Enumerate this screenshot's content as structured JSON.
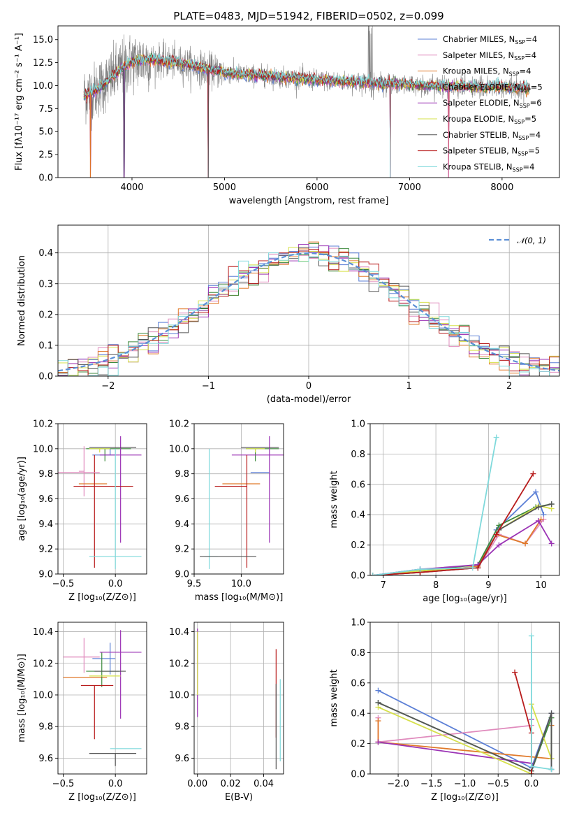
{
  "figure": {
    "title": "PLATE=0483, MJD=51942, FIBERID=0502, z=0.099"
  },
  "model_colors": [
    "#5b7fd6",
    "#e08bbd",
    "#e07a2b",
    "#3d8a3d",
    "#9b33b5",
    "#d6e04a",
    "#555555",
    "#b81c1c",
    "#7fd9db"
  ],
  "models": [
    {
      "label": "Chabrier MILES",
      "nssp": "4"
    },
    {
      "label": "Salpeter MILES",
      "nssp": "4"
    },
    {
      "label": "Kroupa MILES",
      "nssp": "4"
    },
    {
      "label": "Chabrier ELODIE",
      "nssp": "5"
    },
    {
      "label": "Salpeter ELODIE",
      "nssp": "6"
    },
    {
      "label": "Kroupa ELODIE",
      "nssp": "5"
    },
    {
      "label": "Chabrier STELIB",
      "nssp": "4"
    },
    {
      "label": "Salpeter STELIB",
      "nssp": "5"
    },
    {
      "label": "Kroupa STELIB",
      "nssp": "4"
    }
  ],
  "chart_data": [
    {
      "id": "spectrum",
      "type": "line",
      "xlabel": "wavelength [Angstrom, rest frame]",
      "ylabel": "Flux [fλ10⁻¹⁷ erg cm⁻² s⁻¹ A⁻¹]",
      "xlim": [
        3200,
        8620
      ],
      "ylim": [
        0,
        16.5
      ],
      "xticks": [
        4000,
        5000,
        6000,
        7000,
        8000
      ],
      "yticks": [
        0.0,
        2.5,
        5.0,
        7.5,
        10.0,
        12.5,
        15.0
      ],
      "legend_position": "top-right",
      "data_color": "#808080",
      "continuum": {
        "x": [
          3480,
          3600,
          3700,
          3800,
          3900,
          4000,
          4200,
          4400,
          4600,
          4800,
          5000,
          5200,
          5400,
          5600,
          5800,
          6000,
          6200,
          6400,
          6600,
          6800,
          7000,
          7200,
          7400,
          7600,
          7800,
          8000,
          8200,
          8300
        ],
        "y": [
          9.0,
          9.4,
          10.2,
          11.0,
          12.0,
          12.6,
          12.8,
          12.6,
          12.3,
          11.8,
          11.4,
          11.2,
          11.1,
          10.9,
          10.8,
          10.6,
          10.5,
          10.4,
          10.3,
          10.2,
          10.1,
          10.0,
          9.9,
          9.9,
          9.8,
          9.8,
          9.7,
          9.7
        ]
      },
      "dips": [
        {
          "x": 3550,
          "y": 0.0
        },
        {
          "x": 3915,
          "y": 0.0
        },
        {
          "x": 4825,
          "y": 0.0
        },
        {
          "x": 6790,
          "y": 0.0
        },
        {
          "x": 7420,
          "y": 0.0
        }
      ]
    },
    {
      "id": "residuals",
      "type": "histogram",
      "xlabel": "(data-model)/error",
      "ylabel": "Normed distribution",
      "xlim": [
        -2.5,
        2.5
      ],
      "ylim": [
        0,
        0.49
      ],
      "xticks": [
        -2,
        -1,
        0,
        1,
        2
      ],
      "yticks": [
        0.0,
        0.1,
        0.2,
        0.3,
        0.4
      ],
      "legend": [
        "𝒩(0, 1)"
      ],
      "legend_position": "top-right",
      "bin_width": 0.1,
      "bins_start": -2.5
    },
    {
      "id": "age_vs_Z",
      "type": "errorbar",
      "xlabel": "Z [log₁₀(Z/Z⊙)]",
      "ylabel": "age  [log₁₀(age/yr)]",
      "xlim": [
        -0.55,
        0.3
      ],
      "ylim": [
        9.0,
        10.2
      ],
      "xticks": [
        -0.5,
        0.0
      ],
      "xticklabels": [
        "−0.5",
        "0.0"
      ],
      "yticks": [
        9.0,
        9.2,
        9.4,
        9.6,
        9.8,
        10.0,
        10.2
      ],
      "points": [
        {
          "m": 0,
          "x": -0.05,
          "y": 9.95,
          "xerr": [
            0.17,
            0.05
          ],
          "yerr": [
            0.0,
            0.05
          ]
        },
        {
          "m": 1,
          "x": -0.3,
          "y": 9.82,
          "xerr": [
            0.05,
            0.0
          ],
          "yerr": [
            0.2,
            0.2
          ]
        },
        {
          "m": 2,
          "x": -0.3,
          "y": 9.72,
          "xerr": [
            0.05,
            0.22
          ],
          "yerr": [
            0.0,
            0.0
          ]
        },
        {
          "m": 3,
          "x": -0.1,
          "y": 10.0,
          "xerr": [
            0.18,
            0.25
          ],
          "yerr": [
            0.1,
            0.0
          ]
        },
        {
          "m": 4,
          "x": 0.05,
          "y": 9.95,
          "xerr": [
            0.2,
            0.2
          ],
          "yerr": [
            0.7,
            0.15
          ]
        },
        {
          "m": 5,
          "x": -0.15,
          "y": 10.0,
          "xerr": [
            0.1,
            0.1
          ],
          "yerr": [
            0.03,
            0.0
          ]
        },
        {
          "m": 6,
          "x": -0.1,
          "y": 10.01,
          "xerr": [
            0.15,
            0.3
          ],
          "yerr": [
            0.0,
            0.0
          ]
        },
        {
          "m": 7,
          "x": -0.2,
          "y": 9.7,
          "xerr": [
            0.2,
            0.37
          ],
          "yerr": [
            0.65,
            0.25
          ]
        },
        {
          "m": 8,
          "x": 0.0,
          "y": 9.14,
          "xerr": [
            0.25,
            0.25
          ],
          "yerr": [
            0.1,
            0.86
          ]
        },
        {
          "m": 1,
          "x": -0.45,
          "y": 9.81,
          "xerr": [
            0.1,
            0.3
          ],
          "yerr": [
            0.0,
            0.0
          ]
        }
      ]
    },
    {
      "id": "age_vs_mass",
      "type": "errorbar",
      "xlabel": "mass [log₁₀(M/M⊙)]",
      "ylabel": "",
      "xlim": [
        9.5,
        10.45
      ],
      "ylim": [
        9.0,
        10.2
      ],
      "xticks": [
        9.5,
        10.0
      ],
      "xticklabels": [
        "9.5",
        "10.0"
      ],
      "yticks": [
        9.0,
        9.2,
        9.4,
        9.6,
        9.8,
        10.0,
        10.2
      ],
      "points": [
        {
          "m": 0,
          "x": 10.2,
          "y": 9.81,
          "xerr": [
            0.1,
            0.1
          ],
          "yerr": [
            0.0,
            0.0
          ]
        },
        {
          "m": 2,
          "x": 10.0,
          "y": 9.72,
          "xerr": [
            0.2,
            0.2
          ],
          "yerr": [
            0.0,
            0.0
          ]
        },
        {
          "m": 3,
          "x": 10.15,
          "y": 10.0,
          "xerr": [
            0.1,
            0.25
          ],
          "yerr": [
            0.1,
            0.0
          ]
        },
        {
          "m": 4,
          "x": 10.3,
          "y": 9.95,
          "xerr": [
            0.4,
            0.15
          ],
          "yerr": [
            0.7,
            0.15
          ]
        },
        {
          "m": 5,
          "x": 10.15,
          "y": 10.0,
          "xerr": [
            0.1,
            0.1
          ],
          "yerr": [
            0.03,
            0.0
          ]
        },
        {
          "m": 6,
          "x": 10.1,
          "y": 10.01,
          "xerr": [
            0.1,
            0.3
          ],
          "yerr": [
            0.0,
            0.0
          ]
        },
        {
          "m": 7,
          "x": 10.06,
          "y": 9.7,
          "xerr": [
            0.34,
            0.0
          ],
          "yerr": [
            0.65,
            0.25
          ]
        },
        {
          "m": 8,
          "x": 9.66,
          "y": 9.14,
          "xerr": [
            0.05,
            0.09
          ],
          "yerr": [
            0.1,
            0.86
          ]
        },
        {
          "m": 6,
          "x": 9.66,
          "y": 9.14,
          "xerr": [
            0.1,
            0.5
          ],
          "yerr": [
            0.0,
            0.0
          ]
        }
      ]
    },
    {
      "id": "massweight_vs_age",
      "type": "line",
      "xlabel": "age  [log₁₀(age/yr)]",
      "ylabel": "mass weight",
      "xlim": [
        6.75,
        10.35
      ],
      "ylim": [
        0,
        1.0
      ],
      "xticks": [
        7,
        8,
        9,
        10
      ],
      "yticks": [
        0.0,
        0.2,
        0.4,
        0.6,
        0.8,
        1.0
      ],
      "series": [
        {
          "m": 0,
          "x": [
            6.8,
            7.7,
            8.8,
            9.15,
            9.9,
            10.05
          ],
          "y": [
            0.0,
            0.04,
            0.05,
            0.3,
            0.55,
            0.4
          ]
        },
        {
          "m": 1,
          "x": [
            6.8,
            7.7,
            8.8,
            9.2,
            9.7,
            10.05
          ],
          "y": [
            0.0,
            0.02,
            0.05,
            0.27,
            0.21,
            0.37
          ]
        },
        {
          "m": 2,
          "x": [
            6.8,
            7.7,
            8.8,
            9.15,
            9.7,
            10.0
          ],
          "y": [
            0.0,
            0.02,
            0.06,
            0.27,
            0.21,
            0.37
          ]
        },
        {
          "m": 3,
          "x": [
            6.8,
            7.7,
            8.8,
            9.2,
            9.9,
            10.2
          ],
          "y": [
            0.0,
            0.03,
            0.07,
            0.33,
            0.45,
            0.47
          ]
        },
        {
          "m": 4,
          "x": [
            6.8,
            7.7,
            8.8,
            9.2,
            9.95,
            10.2
          ],
          "y": [
            0.0,
            0.04,
            0.07,
            0.2,
            0.36,
            0.21
          ]
        },
        {
          "m": 5,
          "x": [
            6.8,
            7.7,
            8.8,
            9.2,
            9.95,
            10.2
          ],
          "y": [
            0.0,
            0.03,
            0.05,
            0.3,
            0.46,
            0.44
          ]
        },
        {
          "m": 6,
          "x": [
            6.8,
            7.7,
            8.8,
            9.2,
            9.95,
            10.2
          ],
          "y": [
            0.0,
            0.02,
            0.05,
            0.3,
            0.45,
            0.47
          ]
        },
        {
          "m": 7,
          "x": [
            6.8,
            7.7,
            8.8,
            9.15,
            9.85
          ],
          "y": [
            0.0,
            0.02,
            0.05,
            0.27,
            0.67
          ]
        },
        {
          "m": 8,
          "x": [
            6.8,
            7.7,
            8.7,
            9.15
          ],
          "y": [
            0.0,
            0.04,
            0.05,
            0.91
          ]
        }
      ]
    },
    {
      "id": "mass_vs_Z",
      "type": "errorbar",
      "xlabel": "Z [log₁₀(Z/Z⊙)]",
      "ylabel": "mass [log₁₀(M/M⊙)]",
      "xlim": [
        -0.55,
        0.3
      ],
      "ylim": [
        9.5,
        10.46
      ],
      "xticks": [
        -0.5,
        0.0
      ],
      "xticklabels": [
        "−0.5",
        "0.0"
      ],
      "yticks": [
        9.6,
        9.8,
        10.0,
        10.2,
        10.4
      ],
      "points": [
        {
          "m": 0,
          "x": -0.05,
          "y": 10.23,
          "xerr": [
            0.17,
            0.05
          ],
          "yerr": [
            0.1,
            0.1
          ]
        },
        {
          "m": 1,
          "x": -0.3,
          "y": 10.24,
          "xerr": [
            0.2,
            0.15
          ],
          "yerr": [
            0.1,
            0.12
          ]
        },
        {
          "m": 2,
          "x": -0.3,
          "y": 10.11,
          "xerr": [
            0.2,
            0.22
          ],
          "yerr": [
            0.0,
            0.0
          ]
        },
        {
          "m": 3,
          "x": -0.13,
          "y": 10.15,
          "xerr": [
            0.15,
            0.17
          ],
          "yerr": [
            0.1,
            0.12
          ]
        },
        {
          "m": 4,
          "x": 0.05,
          "y": 10.27,
          "xerr": [
            0.2,
            0.2
          ],
          "yerr": [
            0.42,
            0.14
          ]
        },
        {
          "m": 5,
          "x": -0.15,
          "y": 10.12,
          "xerr": [
            0.1,
            0.2
          ],
          "yerr": [
            0.0,
            0.0
          ]
        },
        {
          "m": 6,
          "x": -0.1,
          "y": 10.15,
          "xerr": [
            0.1,
            0.2
          ],
          "yerr": [
            0.0,
            0.0
          ]
        },
        {
          "m": 7,
          "x": -0.2,
          "y": 10.06,
          "xerr": [
            0.13,
            0.18
          ],
          "yerr": [
            0.34,
            0.0
          ]
        },
        {
          "m": 8,
          "x": 0.0,
          "y": 9.66,
          "xerr": [
            0.05,
            0.25
          ],
          "yerr": [
            0.0,
            0.0
          ]
        },
        {
          "m": 6,
          "x": 0.0,
          "y": 9.63,
          "xerr": [
            0.25,
            0.2
          ],
          "yerr": [
            0.08,
            0.0
          ]
        }
      ]
    },
    {
      "id": "mass_vs_EBV",
      "type": "errorbar",
      "xlabel": "E(B-V)",
      "ylabel": "",
      "xlim": [
        -0.002,
        0.052
      ],
      "ylim": [
        9.5,
        10.46
      ],
      "xticks": [
        0.0,
        0.02,
        0.04
      ],
      "xticklabels": [
        "0.00",
        "0.02",
        "0.04"
      ],
      "yticks": [
        9.6,
        9.8,
        10.0,
        10.2,
        10.4
      ],
      "points": [
        {
          "m": 4,
          "x": 0.0,
          "y": 10.2,
          "xerr": [
            0,
            0
          ],
          "yerr": [
            0.34,
            0.22
          ]
        },
        {
          "m": 5,
          "x": 0.0,
          "y": 10.2,
          "xerr": [
            0,
            0
          ],
          "yerr": [
            0.2,
            0.2
          ]
        },
        {
          "m": 7,
          "x": 0.0475,
          "y": 10.0,
          "xerr": [
            0,
            0
          ],
          "yerr": [
            0.27,
            0.29
          ]
        },
        {
          "m": 6,
          "x": 0.0475,
          "y": 9.8,
          "xerr": [
            0,
            0
          ],
          "yerr": [
            0.27,
            0.27
          ]
        },
        {
          "m": 8,
          "x": 0.05,
          "y": 9.84,
          "xerr": [
            0,
            0
          ],
          "yerr": [
            0.26,
            0.26
          ]
        }
      ]
    },
    {
      "id": "massweight_vs_Z",
      "type": "line",
      "xlabel": "Z [log₁₀(Z/Z⊙)]",
      "ylabel": "mass weight",
      "xlim": [
        -2.42,
        0.42
      ],
      "ylim": [
        0,
        1.0
      ],
      "xticks": [
        -2.0,
        -1.5,
        -1.0,
        -0.5,
        0.0
      ],
      "xticklabels": [
        "−2.0",
        "−1.5",
        "−1.0",
        "−0.5",
        "0.0"
      ],
      "yticks": [
        0.0,
        0.2,
        0.4,
        0.6,
        0.8,
        1.0
      ],
      "series": [
        {
          "m": 0,
          "x": [
            -2.3,
            0.0,
            0.3,
            0.3
          ],
          "y": [
            0.55,
            0.04,
            0.4,
            0.03
          ]
        },
        {
          "m": 1,
          "x": [
            -2.3,
            -2.3,
            0.0,
            0.0,
            0.0
          ],
          "y": [
            0.37,
            0.21,
            0.32,
            0.0,
            0.0
          ]
        },
        {
          "m": 2,
          "x": [
            -2.3,
            -2.3,
            0.3,
            0.3
          ],
          "y": [
            0.35,
            0.21,
            0.1,
            0.32
          ]
        },
        {
          "m": 3,
          "x": [
            -2.3,
            0.0,
            0.3,
            0.3
          ],
          "y": [
            0.47,
            0.02,
            0.37,
            0.1
          ]
        },
        {
          "m": 4,
          "x": [
            -2.3,
            0.0,
            0.0,
            0.0
          ],
          "y": [
            0.21,
            0.07,
            0.36,
            0.0
          ]
        },
        {
          "m": 5,
          "x": [
            -2.3,
            0.0,
            0.0,
            0.3
          ],
          "y": [
            0.44,
            0.0,
            0.46,
            0.1
          ]
        },
        {
          "m": 6,
          "x": [
            -2.3,
            0.0,
            0.3,
            0.3
          ],
          "y": [
            0.47,
            0.02,
            0.4,
            0.03
          ]
        },
        {
          "m": 7,
          "x": [
            -0.25,
            0.0,
            0.0
          ],
          "y": [
            0.67,
            0.27,
            0.0
          ]
        },
        {
          "m": 8,
          "x": [
            0.0,
            0.0,
            0.3
          ],
          "y": [
            0.91,
            0.05,
            0.03
          ]
        }
      ]
    }
  ]
}
